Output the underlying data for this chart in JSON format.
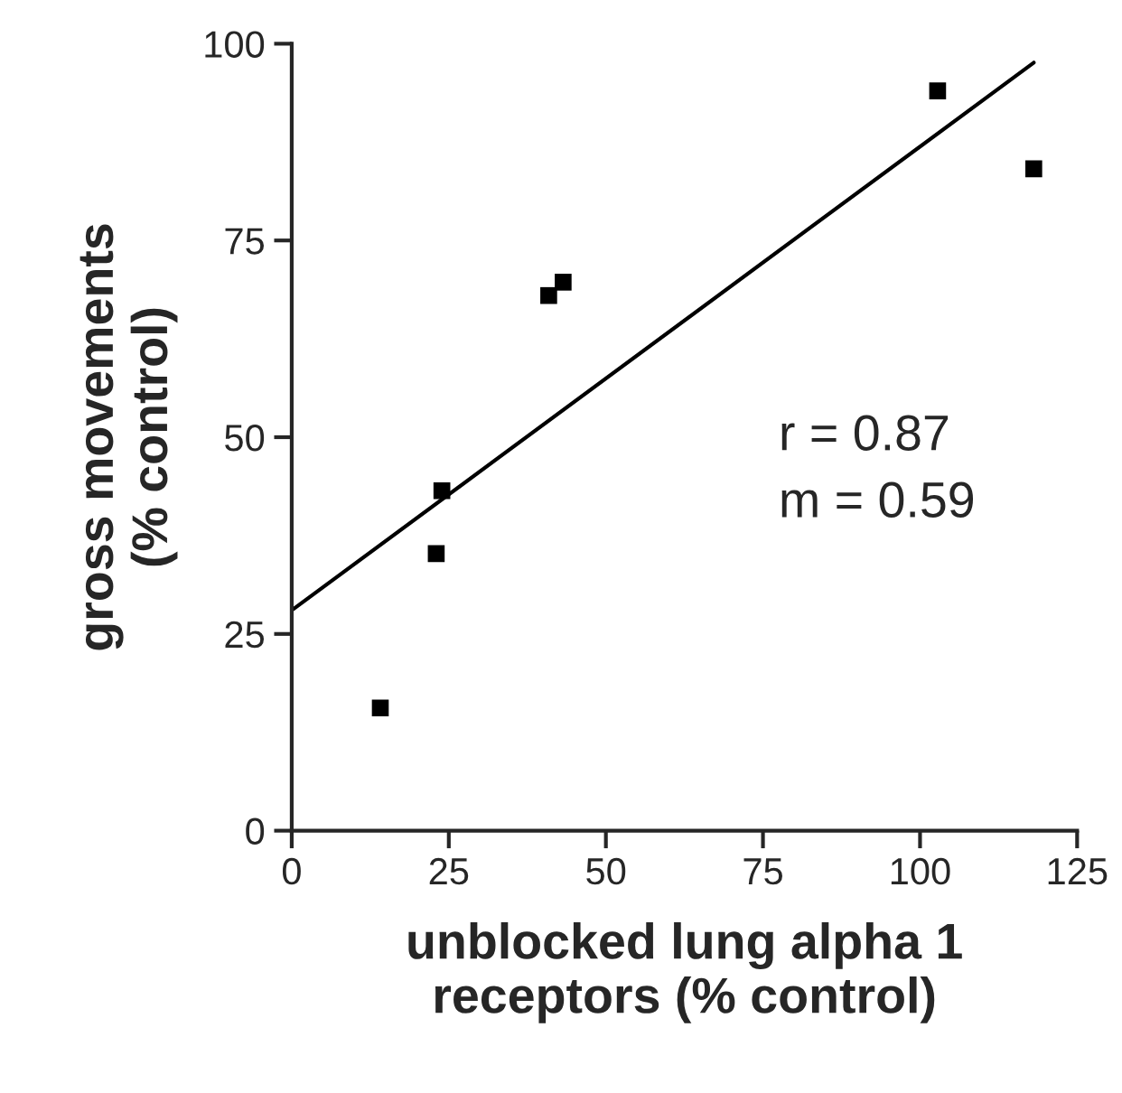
{
  "chart_data": {
    "type": "scatter",
    "xlabel": "unblocked lung alpha 1\nreceptors (% control)",
    "ylabel": "gross movements\n(% control)",
    "xlim": [
      0,
      125
    ],
    "xticks": [
      0,
      25,
      50,
      75,
      100,
      125
    ],
    "ylim": [
      0,
      100
    ],
    "yticks": [
      0,
      25,
      50,
      75,
      100
    ],
    "grid": false,
    "series": [
      {
        "marker": "square",
        "color": "#000000",
        "x": [
          14.1,
          23.0,
          23.9,
          40.9,
          43.2,
          102.8,
          118.1
        ],
        "values": [
          15.6,
          35.2,
          43.2,
          68.0,
          69.7,
          94.0,
          84.1
        ]
      },
      {
        "type": "line",
        "marker": "none",
        "color": "#000000",
        "x": [
          0,
          118.1
        ],
        "values": [
          28.0,
          97.6
        ]
      }
    ],
    "annotations": [
      "r = 0.87",
      "m = 0.59"
    ]
  }
}
